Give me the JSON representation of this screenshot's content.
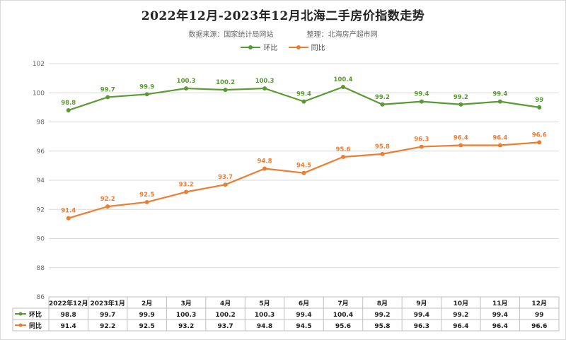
{
  "title": "2022年12月-2023年12月北海二手房价指数走势",
  "source_text": "数据来源：国家统计局网站",
  "compiler_text": "整理：北海房产超市网",
  "legend": [
    {
      "name": "环比",
      "color": "#5a9a32"
    },
    {
      "name": "同比",
      "color": "#ed7d31"
    }
  ],
  "chart_data": {
    "type": "line",
    "title": "2022年12月-2023年12月北海二手房价指数走势",
    "categories": [
      "2022年12月",
      "2023年1月",
      "2月",
      "3月",
      "4月",
      "5月",
      "6月",
      "7月",
      "8月",
      "9月",
      "10月",
      "11月",
      "12月"
    ],
    "series": [
      {
        "name": "环比",
        "color": "#5a9a32",
        "values": [
          98.8,
          99.7,
          99.9,
          100.3,
          100.2,
          100.3,
          99.4,
          100.4,
          99.2,
          99.4,
          99.2,
          99.4,
          99
        ]
      },
      {
        "name": "同比",
        "color": "#ed7d31",
        "values": [
          91.4,
          92.2,
          92.5,
          93.2,
          93.7,
          94.8,
          94.5,
          95.6,
          95.8,
          96.3,
          96.4,
          96.4,
          96.6
        ]
      }
    ],
    "yticks": [
      86,
      88,
      90,
      92,
      94,
      96,
      98,
      100,
      102
    ],
    "ylim": [
      86,
      102
    ],
    "grid": true,
    "legend_position": "top",
    "data_table": true
  }
}
